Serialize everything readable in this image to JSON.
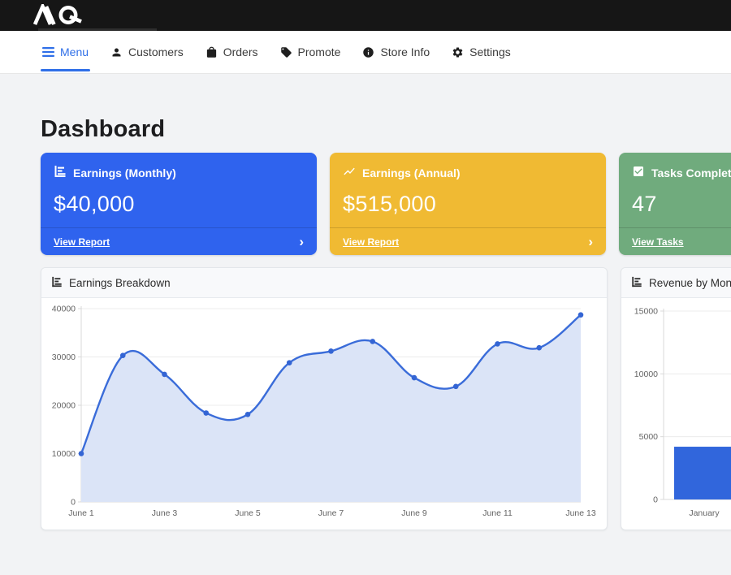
{
  "brand": {
    "icon": "aq-logo"
  },
  "nav": {
    "items": [
      {
        "label": "Menu",
        "icon": "hamburger-icon",
        "active": true,
        "accent": "#2f6fe8"
      },
      {
        "label": "Customers",
        "icon": "person-icon",
        "active": false
      },
      {
        "label": "Orders",
        "icon": "shopping-bag-icon",
        "active": false
      },
      {
        "label": "Promote",
        "icon": "tag-icon",
        "active": false
      },
      {
        "label": "Store Info",
        "icon": "info-icon",
        "active": false
      },
      {
        "label": "Settings",
        "icon": "gear-icon",
        "active": false
      }
    ]
  },
  "page": {
    "title": "Dashboard"
  },
  "stat_cards": [
    {
      "title": "Earnings (Monthly)",
      "value": "$40,000",
      "link": "View Report",
      "chevron": "›",
      "color": "#2f63ee",
      "icon": "bar-chart-icon"
    },
    {
      "title": "Earnings (Annual)",
      "value": "$515,000",
      "link": "View Report",
      "chevron": "›",
      "color": "#f0ba33",
      "icon": "line-chart-icon"
    },
    {
      "title": "Tasks Completed",
      "value": "47",
      "link": "View Tasks",
      "chevron": "›",
      "color": "#70ab7d",
      "icon": "check-square-icon"
    }
  ],
  "chart_data": [
    {
      "type": "area",
      "title": "Earnings Breakdown",
      "x": [
        "June 1",
        "June 2",
        "June 3",
        "June 4",
        "June 5",
        "June 6",
        "June 7",
        "June 8",
        "June 9",
        "June 10",
        "June 11",
        "June 12",
        "June 13"
      ],
      "values": [
        10000,
        30300,
        26400,
        18400,
        18100,
        28800,
        31200,
        33200,
        25700,
        23900,
        32700,
        31900,
        38700
      ],
      "ylim": [
        0,
        40000
      ],
      "yticks": [
        0,
        10000,
        20000,
        30000,
        40000
      ],
      "x_label_every": 2,
      "grid": true,
      "legend": false,
      "line_color": "#3a6cd9",
      "point_color": "#3465d4",
      "fill_color": "#dbe4f7"
    },
    {
      "type": "bar",
      "title": "Revenue by Month",
      "categories": [
        "January"
      ],
      "values": [
        4200
      ],
      "ylim": [
        0,
        15000
      ],
      "yticks": [
        0,
        5000,
        10000,
        15000
      ],
      "grid": true,
      "legend": false,
      "bar_color": "#3166dc"
    }
  ],
  "axis_style": {
    "label_color": "#646464",
    "grid_color": "#ececec",
    "axis_color": "#d9d9d9"
  }
}
